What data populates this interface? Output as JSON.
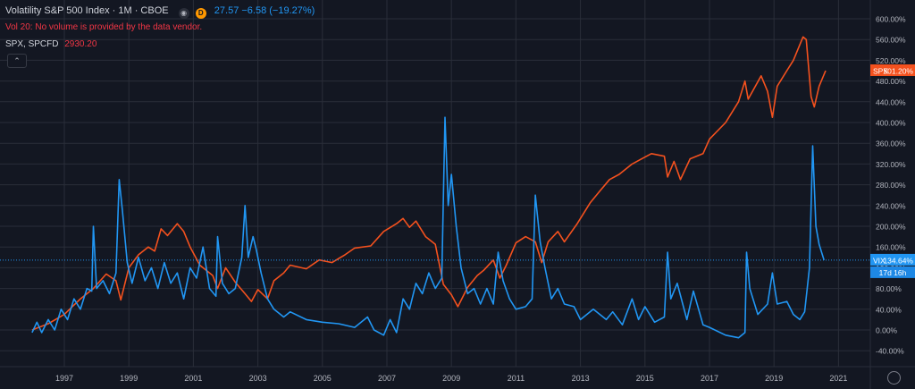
{
  "header": {
    "symbol": "Volatility S&P 500 Index · 1M · CBOE",
    "eye_icon": "eye-icon",
    "source_badge": "D",
    "vix_values": "27.57 −6.58 (−19.27%)",
    "volume_notice": "Vol 20: No volume is provided by the data vendor.",
    "spx_symbol": "SPX, SPCFD",
    "spx_value": "2930.20",
    "collapse_icon": "chevron-up-icon",
    "settings_icon": "gear-icon"
  },
  "colors": {
    "background": "#131722",
    "vix": "#2196f3",
    "spx": "#f4511e",
    "grid": "#2a2e39",
    "axis_text": "#b2b5be"
  },
  "chart_data": {
    "type": "line",
    "y_unit": "percent",
    "ylim": [
      -60,
      620
    ],
    "y_ticks": [
      "600.00%",
      "560.00%",
      "520.00%",
      "480.00%",
      "440.00%",
      "400.00%",
      "360.00%",
      "320.00%",
      "280.00%",
      "240.00%",
      "200.00%",
      "160.00%",
      "120.00%",
      "80.00%",
      "40.00%",
      "0.00%",
      "-40.00%"
    ],
    "x_ticks": [
      "1997",
      "1999",
      "2001",
      "2003",
      "2005",
      "2007",
      "2009",
      "2011",
      "2013",
      "2015",
      "2017",
      "2019",
      "2021"
    ],
    "xlim": [
      1995.9,
      2021.5
    ],
    "grid": true,
    "series": [
      {
        "name": "SPX",
        "color": "#f4511e",
        "last_label": "SPX",
        "last_value": "501.20%",
        "points": [
          [
            1996.0,
            0
          ],
          [
            1996.5,
            12
          ],
          [
            1997.0,
            30
          ],
          [
            1997.5,
            60
          ],
          [
            1997.9,
            80
          ],
          [
            1998.3,
            108
          ],
          [
            1998.6,
            95
          ],
          [
            1998.75,
            58
          ],
          [
            1999.0,
            120
          ],
          [
            1999.3,
            145
          ],
          [
            1999.6,
            160
          ],
          [
            1999.8,
            152
          ],
          [
            2000.0,
            195
          ],
          [
            2000.2,
            182
          ],
          [
            2000.5,
            205
          ],
          [
            2000.7,
            190
          ],
          [
            2000.9,
            160
          ],
          [
            2001.2,
            125
          ],
          [
            2001.6,
            105
          ],
          [
            2001.75,
            80
          ],
          [
            2002.0,
            120
          ],
          [
            2002.3,
            92
          ],
          [
            2002.6,
            70
          ],
          [
            2002.8,
            55
          ],
          [
            2003.0,
            78
          ],
          [
            2003.3,
            60
          ],
          [
            2003.5,
            95
          ],
          [
            2003.8,
            110
          ],
          [
            2004.0,
            125
          ],
          [
            2004.5,
            118
          ],
          [
            2004.9,
            135
          ],
          [
            2005.3,
            130
          ],
          [
            2005.7,
            145
          ],
          [
            2006.0,
            158
          ],
          [
            2006.5,
            162
          ],
          [
            2006.9,
            190
          ],
          [
            2007.3,
            205
          ],
          [
            2007.5,
            215
          ],
          [
            2007.7,
            198
          ],
          [
            2007.9,
            210
          ],
          [
            2008.2,
            180
          ],
          [
            2008.5,
            165
          ],
          [
            2008.75,
            88
          ],
          [
            2009.0,
            68
          ],
          [
            2009.2,
            45
          ],
          [
            2009.5,
            82
          ],
          [
            2009.8,
            105
          ],
          [
            2010.0,
            115
          ],
          [
            2010.3,
            135
          ],
          [
            2010.5,
            100
          ],
          [
            2010.7,
            125
          ],
          [
            2011.0,
            168
          ],
          [
            2011.3,
            180
          ],
          [
            2011.6,
            170
          ],
          [
            2011.8,
            130
          ],
          [
            2012.0,
            170
          ],
          [
            2012.3,
            190
          ],
          [
            2012.5,
            170
          ],
          [
            2012.9,
            205
          ],
          [
            2013.3,
            245
          ],
          [
            2013.6,
            268
          ],
          [
            2013.9,
            290
          ],
          [
            2014.2,
            300
          ],
          [
            2014.6,
            320
          ],
          [
            2014.9,
            330
          ],
          [
            2015.2,
            340
          ],
          [
            2015.6,
            335
          ],
          [
            2015.7,
            295
          ],
          [
            2015.9,
            325
          ],
          [
            2016.1,
            290
          ],
          [
            2016.4,
            330
          ],
          [
            2016.8,
            340
          ],
          [
            2017.0,
            368
          ],
          [
            2017.5,
            400
          ],
          [
            2017.9,
            440
          ],
          [
            2018.1,
            480
          ],
          [
            2018.2,
            445
          ],
          [
            2018.6,
            490
          ],
          [
            2018.8,
            460
          ],
          [
            2018.95,
            410
          ],
          [
            2019.1,
            470
          ],
          [
            2019.4,
            500
          ],
          [
            2019.6,
            520
          ],
          [
            2019.9,
            565
          ],
          [
            2020.0,
            560
          ],
          [
            2020.15,
            450
          ],
          [
            2020.25,
            430
          ],
          [
            2020.4,
            470
          ],
          [
            2020.6,
            500
          ]
        ]
      },
      {
        "name": "VIX",
        "color": "#2196f3",
        "last_label": "VIX",
        "last_value": "134.64%",
        "countdown": "17d 16h",
        "points": [
          [
            1996.0,
            -5
          ],
          [
            1996.15,
            15
          ],
          [
            1996.3,
            -5
          ],
          [
            1996.5,
            20
          ],
          [
            1996.7,
            0
          ],
          [
            1996.9,
            40
          ],
          [
            1997.1,
            20
          ],
          [
            1997.3,
            60
          ],
          [
            1997.5,
            40
          ],
          [
            1997.7,
            80
          ],
          [
            1997.85,
            75
          ],
          [
            1997.9,
            200
          ],
          [
            1998.0,
            80
          ],
          [
            1998.2,
            95
          ],
          [
            1998.4,
            70
          ],
          [
            1998.6,
            110
          ],
          [
            1998.7,
            290
          ],
          [
            1998.8,
            230
          ],
          [
            1998.95,
            130
          ],
          [
            1999.1,
            90
          ],
          [
            1999.3,
            140
          ],
          [
            1999.5,
            95
          ],
          [
            1999.7,
            120
          ],
          [
            1999.9,
            80
          ],
          [
            2000.1,
            130
          ],
          [
            2000.3,
            90
          ],
          [
            2000.5,
            110
          ],
          [
            2000.7,
            60
          ],
          [
            2000.9,
            120
          ],
          [
            2001.1,
            100
          ],
          [
            2001.3,
            160
          ],
          [
            2001.5,
            80
          ],
          [
            2001.7,
            65
          ],
          [
            2001.75,
            180
          ],
          [
            2001.9,
            90
          ],
          [
            2002.1,
            70
          ],
          [
            2002.3,
            80
          ],
          [
            2002.5,
            140
          ],
          [
            2002.6,
            240
          ],
          [
            2002.7,
            140
          ],
          [
            2002.85,
            180
          ],
          [
            2002.95,
            155
          ],
          [
            2003.1,
            110
          ],
          [
            2003.3,
            60
          ],
          [
            2003.5,
            40
          ],
          [
            2003.8,
            25
          ],
          [
            2004.0,
            35
          ],
          [
            2004.5,
            20
          ],
          [
            2005.0,
            15
          ],
          [
            2005.5,
            12
          ],
          [
            2006.0,
            5
          ],
          [
            2006.4,
            25
          ],
          [
            2006.6,
            0
          ],
          [
            2006.9,
            -10
          ],
          [
            2007.1,
            20
          ],
          [
            2007.3,
            -5
          ],
          [
            2007.5,
            60
          ],
          [
            2007.7,
            40
          ],
          [
            2007.9,
            90
          ],
          [
            2008.1,
            70
          ],
          [
            2008.3,
            110
          ],
          [
            2008.5,
            80
          ],
          [
            2008.7,
            100
          ],
          [
            2008.8,
            410
          ],
          [
            2008.9,
            240
          ],
          [
            2009.0,
            300
          ],
          [
            2009.15,
            200
          ],
          [
            2009.3,
            120
          ],
          [
            2009.5,
            70
          ],
          [
            2009.7,
            80
          ],
          [
            2009.9,
            50
          ],
          [
            2010.1,
            80
          ],
          [
            2010.3,
            50
          ],
          [
            2010.45,
            150
          ],
          [
            2010.6,
            95
          ],
          [
            2010.8,
            60
          ],
          [
            2011.0,
            40
          ],
          [
            2011.3,
            45
          ],
          [
            2011.5,
            60
          ],
          [
            2011.6,
            260
          ],
          [
            2011.75,
            170
          ],
          [
            2011.9,
            120
          ],
          [
            2012.1,
            60
          ],
          [
            2012.3,
            80
          ],
          [
            2012.5,
            50
          ],
          [
            2012.8,
            45
          ],
          [
            2013.0,
            20
          ],
          [
            2013.4,
            40
          ],
          [
            2013.8,
            20
          ],
          [
            2014.0,
            35
          ],
          [
            2014.3,
            10
          ],
          [
            2014.6,
            60
          ],
          [
            2014.8,
            20
          ],
          [
            2015.0,
            45
          ],
          [
            2015.3,
            15
          ],
          [
            2015.6,
            25
          ],
          [
            2015.7,
            150
          ],
          [
            2015.8,
            60
          ],
          [
            2016.0,
            90
          ],
          [
            2016.3,
            20
          ],
          [
            2016.5,
            75
          ],
          [
            2016.8,
            10
          ],
          [
            2017.0,
            5
          ],
          [
            2017.5,
            -10
          ],
          [
            2017.9,
            -15
          ],
          [
            2018.1,
            -5
          ],
          [
            2018.15,
            150
          ],
          [
            2018.25,
            80
          ],
          [
            2018.5,
            30
          ],
          [
            2018.8,
            50
          ],
          [
            2018.95,
            110
          ],
          [
            2019.1,
            50
          ],
          [
            2019.4,
            55
          ],
          [
            2019.6,
            30
          ],
          [
            2019.8,
            20
          ],
          [
            2019.95,
            35
          ],
          [
            2020.1,
            120
          ],
          [
            2020.2,
            355
          ],
          [
            2020.3,
            200
          ],
          [
            2020.4,
            165
          ],
          [
            2020.55,
            134.64
          ]
        ]
      }
    ]
  }
}
